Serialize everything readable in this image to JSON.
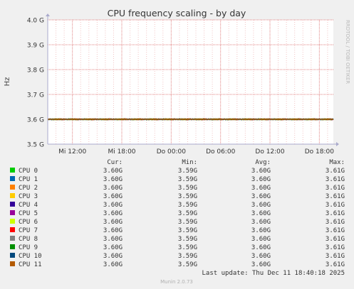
{
  "chart_data": {
    "type": "line",
    "title": "CPU frequency scaling - by day",
    "ylabel": "Hz",
    "xlabel": "",
    "ylim": [
      3.5,
      4.0
    ],
    "y_ticks": [
      {
        "value": 3.5,
        "label": "3.5 G"
      },
      {
        "value": 3.6,
        "label": "3.6 G"
      },
      {
        "value": 3.7,
        "label": "3.7 G"
      },
      {
        "value": 3.8,
        "label": "3.8 G"
      },
      {
        "value": 3.9,
        "label": "3.9 G"
      },
      {
        "value": 4.0,
        "label": "4.0 G"
      }
    ],
    "x_range": [
      "Mi 09:00",
      "Do 19:00"
    ],
    "x_ticks": [
      {
        "value": 3,
        "label": "Mi 12:00"
      },
      {
        "value": 9,
        "label": "Mi 18:00"
      },
      {
        "value": 15,
        "label": "Do 00:00"
      },
      {
        "value": 21,
        "label": "Do 06:00"
      },
      {
        "value": 27,
        "label": "Do 12:00"
      },
      {
        "value": 33,
        "label": "Do 18:00"
      }
    ],
    "x_max": 34.7,
    "grid": true,
    "side_label": "RRDTOOL / TOBI OETIKER",
    "series_value_ghz": 3.6,
    "series": [
      {
        "name": "CPU 0",
        "color": "#00cc00",
        "cur": "3.60G",
        "min": "3.59G",
        "avg": "3.60G",
        "max": "3.61G"
      },
      {
        "name": "CPU 1",
        "color": "#0066b3",
        "cur": "3.60G",
        "min": "3.59G",
        "avg": "3.60G",
        "max": "3.61G"
      },
      {
        "name": "CPU 2",
        "color": "#ff8000",
        "cur": "3.60G",
        "min": "3.59G",
        "avg": "3.60G",
        "max": "3.61G"
      },
      {
        "name": "CPU 3",
        "color": "#ffcc00",
        "cur": "3.60G",
        "min": "3.59G",
        "avg": "3.60G",
        "max": "3.61G"
      },
      {
        "name": "CPU 4",
        "color": "#330099",
        "cur": "3.60G",
        "min": "3.59G",
        "avg": "3.60G",
        "max": "3.61G"
      },
      {
        "name": "CPU 5",
        "color": "#990099",
        "cur": "3.60G",
        "min": "3.59G",
        "avg": "3.60G",
        "max": "3.61G"
      },
      {
        "name": "CPU 6",
        "color": "#ccff00",
        "cur": "3.60G",
        "min": "3.59G",
        "avg": "3.60G",
        "max": "3.61G"
      },
      {
        "name": "CPU 7",
        "color": "#ff0000",
        "cur": "3.60G",
        "min": "3.59G",
        "avg": "3.60G",
        "max": "3.61G"
      },
      {
        "name": "CPU 8",
        "color": "#808080",
        "cur": "3.60G",
        "min": "3.59G",
        "avg": "3.60G",
        "max": "3.61G"
      },
      {
        "name": "CPU 9",
        "color": "#008f00",
        "cur": "3.60G",
        "min": "3.59G",
        "avg": "3.60G",
        "max": "3.61G"
      },
      {
        "name": "CPU 10",
        "color": "#00487d",
        "cur": "3.60G",
        "min": "3.59G",
        "avg": "3.60G",
        "max": "3.61G"
      },
      {
        "name": "CPU 11",
        "color": "#b35a00",
        "cur": "3.60G",
        "min": "3.59G",
        "avg": "3.60G",
        "max": "3.61G"
      }
    ]
  },
  "legend_headers": {
    "cur": "Cur:",
    "min": "Min:",
    "avg": "Avg:",
    "max": "Max:"
  },
  "last_update": "Last update: Thu Dec 11 18:40:18 2025",
  "footer": "Munin 2.0.73"
}
